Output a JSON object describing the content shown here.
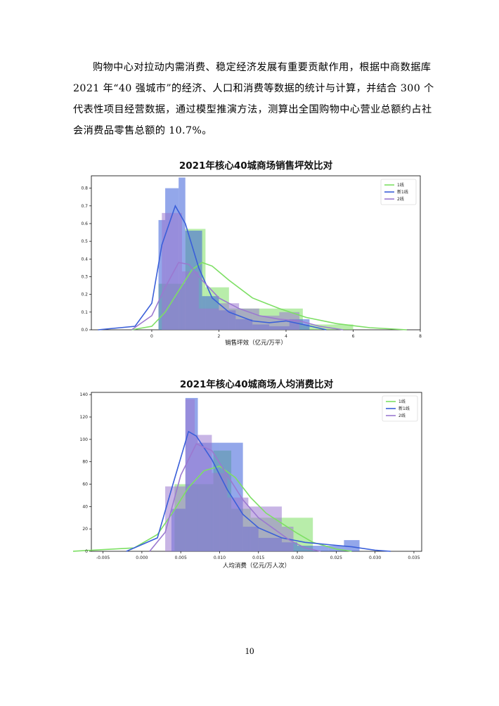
{
  "paragraph": {
    "lines": [
      "购物中心对拉动内需消费、稳定经济发展有重要贡献作用，根据中商数据库",
      "2021 年“40 强城市”的经济、人口和消费等数据的统计与计算，并结合 300 个",
      "代表性项目经营数据，通过模型推演方法，测算出全国购物中心营业总额约占社",
      "会消费品零售总额的 10.7%。"
    ]
  },
  "page_number": "10",
  "colors": {
    "tier1": "#7ddf64",
    "new_tier1": "#3a5fd9",
    "tier2": "#9b79d0"
  },
  "chart_data": [
    {
      "type": "histogram",
      "title": "2021年核心40城商场销售坪效比对",
      "xlabel": "销售坪效（亿元/万平）",
      "ylabel": "",
      "xlim": [
        -1.8,
        8.0
      ],
      "ylim": [
        0,
        0.87
      ],
      "xticks": [
        "0",
        "2",
        "4",
        "6",
        "8"
      ],
      "yticks": [
        "0.0",
        "0.1",
        "0.2",
        "0.3",
        "0.4",
        "0.5",
        "0.6",
        "0.7",
        "0.8"
      ],
      "legend": [
        "1线",
        "新1线",
        "2线"
      ],
      "legend_position": "top-right",
      "series": [
        {
          "name": "1线",
          "color": "#7ddf64",
          "bins": [
            [
              0.2,
              1.0,
              0.26
            ],
            [
              1.0,
              1.6,
              0.57
            ],
            [
              1.6,
              2.3,
              0.24
            ],
            [
              2.3,
              3.0,
              0.12
            ],
            [
              3.0,
              4.5,
              0.12
            ],
            [
              4.5,
              6.0,
              0.03
            ]
          ],
          "kde": [
            [
              -0.6,
              0
            ],
            [
              0.0,
              0.02
            ],
            [
              0.4,
              0.1
            ],
            [
              0.8,
              0.22
            ],
            [
              1.2,
              0.34
            ],
            [
              1.5,
              0.38
            ],
            [
              1.8,
              0.36
            ],
            [
              2.3,
              0.28
            ],
            [
              3.0,
              0.18
            ],
            [
              3.8,
              0.12
            ],
            [
              4.6,
              0.07
            ],
            [
              5.5,
              0.035
            ],
            [
              6.5,
              0.012
            ],
            [
              7.6,
              0
            ]
          ]
        },
        {
          "name": "新1线",
          "color": "#3a5fd9",
          "bins": [
            [
              0.2,
              0.4,
              0.62
            ],
            [
              0.4,
              0.8,
              0.8
            ],
            [
              0.8,
              1.0,
              0.86
            ],
            [
              1.0,
              1.5,
              0.56
            ],
            [
              1.5,
              2.0,
              0.19
            ],
            [
              2.0,
              2.5,
              0.11
            ],
            [
              2.5,
              3.0,
              0.06
            ],
            [
              3.0,
              3.5,
              0.03
            ],
            [
              3.5,
              4.1,
              0.02
            ],
            [
              4.1,
              4.7,
              0.06
            ]
          ],
          "kde": [
            [
              -1.6,
              0
            ],
            [
              -0.5,
              0.02
            ],
            [
              0.0,
              0.15
            ],
            [
              0.3,
              0.48
            ],
            [
              0.7,
              0.7
            ],
            [
              1.0,
              0.6
            ],
            [
              1.4,
              0.35
            ],
            [
              1.8,
              0.18
            ],
            [
              2.3,
              0.1
            ],
            [
              3.0,
              0.05
            ],
            [
              3.5,
              0.04
            ],
            [
              4.0,
              0.05
            ],
            [
              4.5,
              0.03
            ],
            [
              5.2,
              0
            ]
          ]
        },
        {
          "name": "2线",
          "color": "#9b79d0",
          "bins": [
            [
              0.3,
              0.9,
              0.66
            ],
            [
              0.9,
              1.4,
              0.33
            ],
            [
              1.4,
              2.0,
              0.12
            ],
            [
              2.0,
              2.6,
              0.15
            ],
            [
              2.6,
              3.2,
              0.12
            ],
            [
              3.2,
              3.8,
              0.08
            ],
            [
              3.8,
              4.4,
              0.1
            ]
          ],
          "kde": [
            [
              -0.6,
              0
            ],
            [
              0.0,
              0.08
            ],
            [
              0.4,
              0.24
            ],
            [
              0.8,
              0.38
            ],
            [
              1.1,
              0.37
            ],
            [
              1.5,
              0.28
            ],
            [
              2.0,
              0.18
            ],
            [
              2.6,
              0.12
            ],
            [
              3.2,
              0.08
            ],
            [
              3.8,
              0.06
            ],
            [
              4.4,
              0.05
            ],
            [
              5.0,
              0.02
            ],
            [
              5.7,
              0
            ]
          ]
        }
      ]
    },
    {
      "type": "histogram",
      "title": "2021年核心40城商场人均消费比对",
      "xlabel": "人均消费（亿元/万人次）",
      "ylabel": "",
      "xlim": [
        -0.0065,
        0.036
      ],
      "ylim": [
        0,
        142
      ],
      "xticks": [
        "-0.005",
        "0.000",
        "0.005",
        "0.010",
        "0.015",
        "0.020",
        "0.025",
        "0.030",
        "0.035"
      ],
      "yticks": [
        "0",
        "20",
        "40",
        "60",
        "80",
        "100",
        "120",
        "140"
      ],
      "legend": [
        "1线",
        "新1线",
        "2线"
      ],
      "legend_position": "top-right",
      "series": [
        {
          "name": "1线",
          "color": "#7ddf64",
          "bins": [
            [
              0.0042,
              0.0092,
              60
            ],
            [
              0.0092,
              0.0115,
              90
            ],
            [
              0.0115,
              0.014,
              38
            ],
            [
              0.014,
              0.0175,
              30
            ],
            [
              0.0175,
              0.022,
              30
            ]
          ],
          "kde": [
            [
              -0.009,
              0
            ],
            [
              -0.001,
              3
            ],
            [
              0.002,
              15
            ],
            [
              0.004,
              35
            ],
            [
              0.006,
              57
            ],
            [
              0.008,
              72
            ],
            [
              0.01,
              76
            ],
            [
              0.012,
              66
            ],
            [
              0.014,
              48
            ],
            [
              0.016,
              34
            ],
            [
              0.018,
              25
            ],
            [
              0.02,
              16
            ],
            [
              0.022,
              8
            ],
            [
              0.025,
              2
            ],
            [
              0.027,
              0
            ]
          ]
        },
        {
          "name": "新1线",
          "color": "#3a5fd9",
          "bins": [
            [
              0.0038,
              0.0056,
              38
            ],
            [
              0.0056,
              0.0072,
              137
            ],
            [
              0.0072,
              0.01,
              97
            ],
            [
              0.01,
              0.013,
              97
            ],
            [
              0.013,
              0.015,
              22
            ],
            [
              0.015,
              0.018,
              12
            ],
            [
              0.018,
              0.02,
              8
            ],
            [
              0.02,
              0.024,
              5
            ],
            [
              0.024,
              0.026,
              5
            ],
            [
              0.026,
              0.028,
              10
            ]
          ],
          "kde": [
            [
              -0.002,
              0
            ],
            [
              0.002,
              12
            ],
            [
              0.004,
              60
            ],
            [
              0.006,
              107
            ],
            [
              0.007,
              103
            ],
            [
              0.009,
              82
            ],
            [
              0.011,
              55
            ],
            [
              0.013,
              33
            ],
            [
              0.015,
              21
            ],
            [
              0.018,
              12
            ],
            [
              0.021,
              8
            ],
            [
              0.024,
              6
            ],
            [
              0.027,
              4
            ],
            [
              0.03,
              1
            ],
            [
              0.032,
              0
            ]
          ]
        },
        {
          "name": "2线",
          "color": "#9b79d0",
          "bins": [
            [
              0.003,
              0.0056,
              58
            ],
            [
              0.0056,
              0.0068,
              136
            ],
            [
              0.0068,
              0.009,
              104
            ],
            [
              0.009,
              0.011,
              70
            ],
            [
              0.011,
              0.0137,
              48
            ],
            [
              0.0137,
              0.018,
              40
            ],
            [
              0.018,
              0.0195,
              22
            ]
          ],
          "kde": [
            [
              0.001,
              0
            ],
            [
              0.003,
              17
            ],
            [
              0.005,
              68
            ],
            [
              0.007,
              96
            ],
            [
              0.009,
              90
            ],
            [
              0.011,
              68
            ],
            [
              0.013,
              46
            ],
            [
              0.015,
              30
            ],
            [
              0.017,
              20
            ],
            [
              0.019,
              10
            ],
            [
              0.021,
              3
            ],
            [
              0.023,
              0
            ]
          ]
        }
      ]
    }
  ]
}
